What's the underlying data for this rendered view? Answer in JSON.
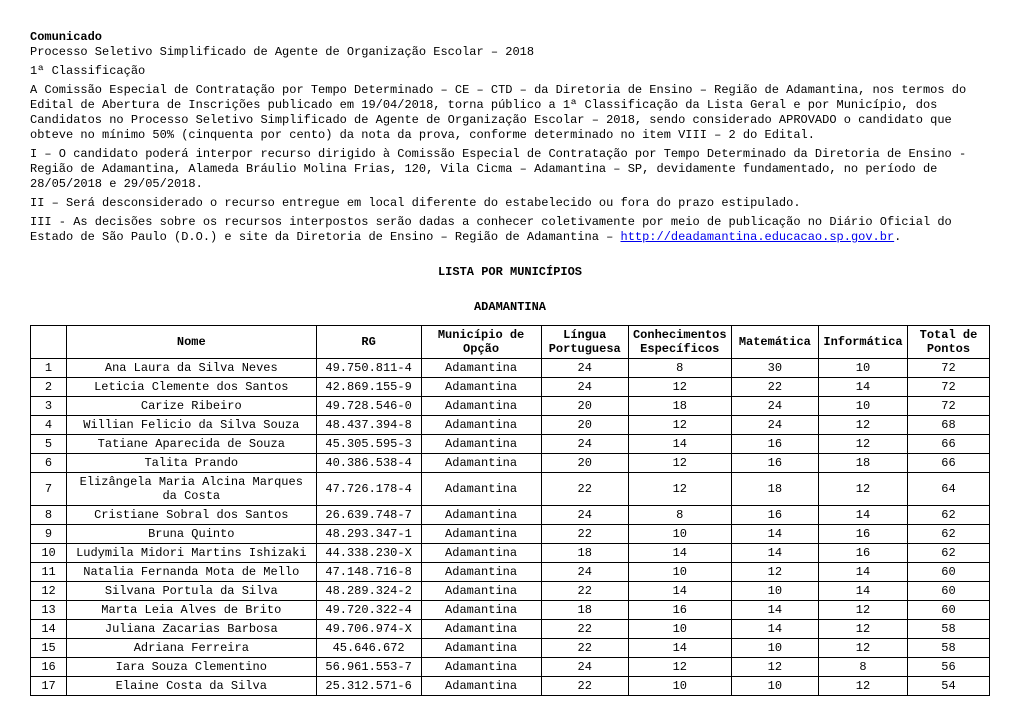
{
  "header": {
    "comunicado": "Comunicado",
    "l1": "Processo Seletivo Simplificado de Agente de Organização Escolar – 2018",
    "l2": "1ª Classificação",
    "p1": "A Comissão Especial de Contratação por Tempo Determinado – CE – CTD – da Diretoria de Ensino – Região de Adamantina, nos termos do Edital de Abertura de Inscrições publicado em 19/04/2018, torna público a 1ª Classificação da Lista Geral e por Município, dos Candidatos no Processo Seletivo Simplificado de Agente de Organização Escolar – 2018, sendo considerado APROVADO o candidato que obteve no mínimo 50% (cinquenta por cento) da nota da prova, conforme determinado no item VIII – 2 do Edital.",
    "p2": "I – O candidato poderá interpor recurso dirigido à Comissão Especial de Contratação por Tempo Determinado da Diretoria de Ensino - Região de Adamantina, Alameda Bráulio Molina Frias, 120, Vila Cicma – Adamantina – SP, devidamente fundamentado, no período de 28/05/2018 e 29/05/2018.",
    "p3": "II – Será desconsiderado o recurso entregue em local diferente do estabelecido ou fora do prazo estipulado.",
    "p4a": "III - As decisões sobre os recursos interpostos serão dadas a conhecer coletivamente por meio de publicação no Diário Oficial do Estado de São Paulo (D.O.) e site da Diretoria de Ensino – Região de Adamantina – ",
    "link": "http://deadamantina.educacao.sp.gov.br",
    "p4b": "."
  },
  "titles": {
    "lista": "LISTA POR MUNICÍPIOS",
    "municipio": "ADAMANTINA"
  },
  "table": {
    "columns": [
      "",
      "Nome",
      "RG",
      "Município de Opção",
      "Língua Portuguesa",
      "Conhecimentos Específicos",
      "Matemática",
      "Informática",
      "Total de Pontos"
    ],
    "rows": [
      [
        "1",
        "Ana Laura da Silva Neves",
        "49.750.811-4",
        "Adamantina",
        "24",
        "8",
        "30",
        "10",
        "72"
      ],
      [
        "2",
        "Leticia Clemente dos Santos",
        "42.869.155-9",
        "Adamantina",
        "24",
        "12",
        "22",
        "14",
        "72"
      ],
      [
        "3",
        "Carize Ribeiro",
        "49.728.546-0",
        "Adamantina",
        "20",
        "18",
        "24",
        "10",
        "72"
      ],
      [
        "4",
        "Willian Felicio da Silva Souza",
        "48.437.394-8",
        "Adamantina",
        "20",
        "12",
        "24",
        "12",
        "68"
      ],
      [
        "5",
        "Tatiane Aparecida de Souza",
        "45.305.595-3",
        "Adamantina",
        "24",
        "14",
        "16",
        "12",
        "66"
      ],
      [
        "6",
        "Talita Prando",
        "40.386.538-4",
        "Adamantina",
        "20",
        "12",
        "16",
        "18",
        "66"
      ],
      [
        "7",
        "Elizângela Maria Alcina Marques da Costa",
        "47.726.178-4",
        "Adamantina",
        "22",
        "12",
        "18",
        "12",
        "64"
      ],
      [
        "8",
        "Cristiane Sobral dos Santos",
        "26.639.748-7",
        "Adamantina",
        "24",
        "8",
        "16",
        "14",
        "62"
      ],
      [
        "9",
        "Bruna Quinto",
        "48.293.347-1",
        "Adamantina",
        "22",
        "10",
        "14",
        "16",
        "62"
      ],
      [
        "10",
        "Ludymila Midori Martins Ishizaki",
        "44.338.230-X",
        "Adamantina",
        "18",
        "14",
        "14",
        "16",
        "62"
      ],
      [
        "11",
        "Natalia Fernanda Mota de Mello",
        "47.148.716-8",
        "Adamantina",
        "24",
        "10",
        "12",
        "14",
        "60"
      ],
      [
        "12",
        "Silvana Portula da Silva",
        "48.289.324-2",
        "Adamantina",
        "22",
        "14",
        "10",
        "14",
        "60"
      ],
      [
        "13",
        "Marta Leia Alves de Brito",
        "49.720.322-4",
        "Adamantina",
        "18",
        "16",
        "14",
        "12",
        "60"
      ],
      [
        "14",
        "Juliana Zacarias Barbosa",
        "49.706.974-X",
        "Adamantina",
        "22",
        "10",
        "14",
        "12",
        "58"
      ],
      [
        "15",
        "Adriana Ferreira",
        "45.646.672",
        "Adamantina",
        "22",
        "14",
        "10",
        "12",
        "58"
      ],
      [
        "16",
        "Iara Souza Clementino",
        "56.961.553-7",
        "Adamantina",
        "24",
        "12",
        "12",
        "8",
        "56"
      ],
      [
        "17",
        "Elaine Costa da Silva",
        "25.312.571-6",
        "Adamantina",
        "22",
        "10",
        "10",
        "12",
        "54"
      ]
    ]
  }
}
